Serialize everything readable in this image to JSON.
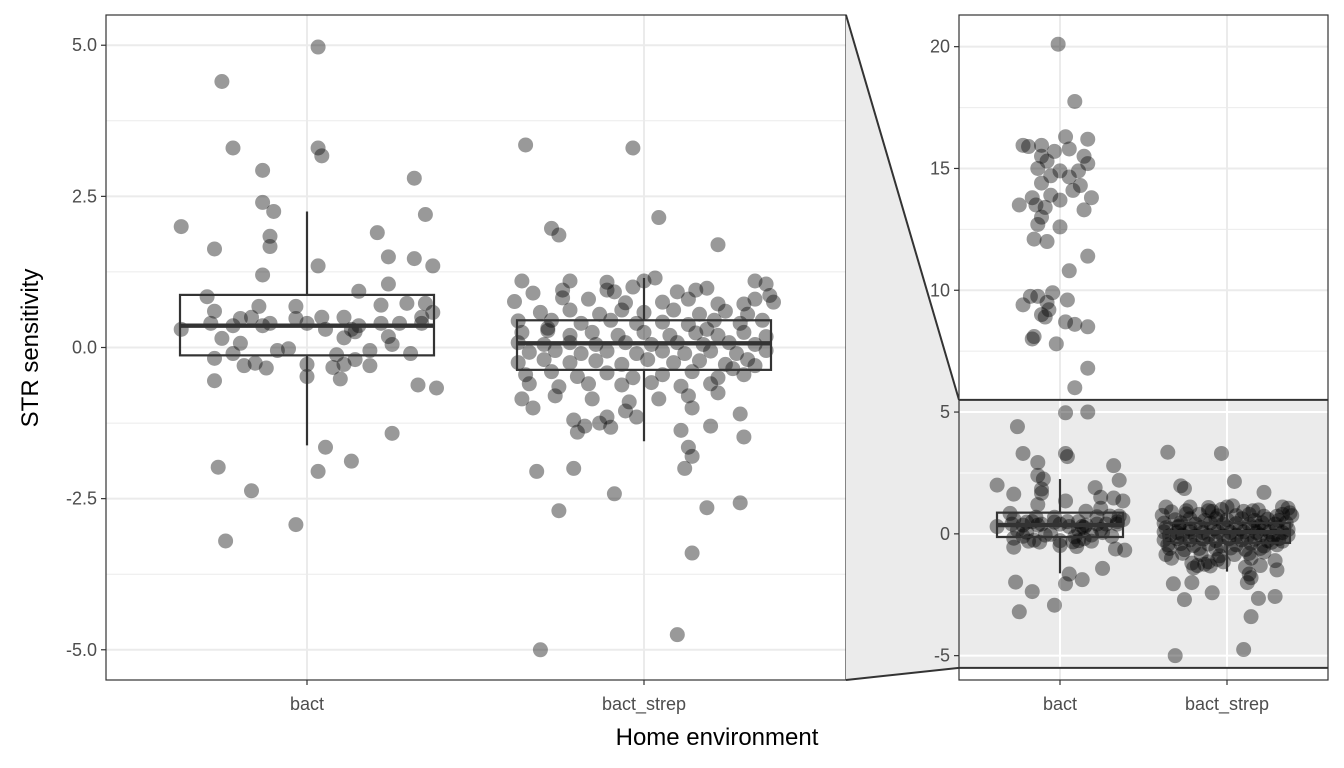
{
  "chart_data": {
    "type": "scatter",
    "subtype": "jittered points with boxplots and zoom inset",
    "xlabel": "Home environment",
    "ylabel": "STR sensitivity",
    "categories": [
      "bact",
      "bact_strep"
    ],
    "grid": true,
    "legend": "none",
    "point_color": "#000000",
    "point_opacity": 0.4,
    "main_panel": {
      "ylim": [
        -5.5,
        5.5
      ],
      "yticks": [
        -5.0,
        -2.5,
        0.0,
        2.5,
        5.0
      ],
      "ytick_labels": [
        "-5.0",
        "-2.5",
        "0.0",
        "2.5",
        "5.0"
      ],
      "xticks": [
        "bact",
        "bact_strep"
      ]
    },
    "zoom_panel": {
      "ylim": [
        -6,
        21.3
      ],
      "yticks": [
        -5,
        0,
        5,
        10,
        15,
        20
      ],
      "ytick_labels": [
        "-5",
        "0",
        "5",
        "10",
        "15",
        "20"
      ],
      "xticks": [
        "bact",
        "bact_strep"
      ],
      "highlight_range": [
        -5.5,
        5.5
      ],
      "highlight_color": "#ebebeb"
    },
    "boxes": [
      {
        "category": "bact",
        "q1": -0.13,
        "median": 0.36,
        "q3": 0.87,
        "whisker_low": -1.62,
        "whisker_high": 2.25
      },
      {
        "category": "bact_strep",
        "q1": -0.37,
        "median": 0.07,
        "q3": 0.45,
        "whisker_low": -1.55,
        "whisker_high": 1.15
      }
    ],
    "series": [
      {
        "category": "bact",
        "points": [
          [
            0.03,
            4.97
          ],
          [
            -0.23,
            4.4
          ],
          [
            -0.2,
            3.3
          ],
          [
            0.03,
            3.3
          ],
          [
            0.04,
            3.17
          ],
          [
            -0.12,
            2.93
          ],
          [
            0.29,
            2.8
          ],
          [
            -0.34,
            2.0
          ],
          [
            -0.12,
            2.4
          ],
          [
            -0.09,
            2.25
          ],
          [
            0.32,
            2.2
          ],
          [
            -0.25,
            1.63
          ],
          [
            -0.1,
            1.84
          ],
          [
            -0.1,
            1.67
          ],
          [
            0.19,
            1.9
          ],
          [
            0.29,
            1.47
          ],
          [
            0.22,
            1.5
          ],
          [
            0.03,
            1.35
          ],
          [
            0.34,
            1.35
          ],
          [
            -0.12,
            1.2
          ],
          [
            0.22,
            1.05
          ],
          [
            0.14,
            0.93
          ],
          [
            -0.27,
            0.84
          ],
          [
            0.27,
            0.73
          ],
          [
            0.32,
            0.73
          ],
          [
            -0.03,
            0.68
          ],
          [
            -0.13,
            0.68
          ],
          [
            0.34,
            0.58
          ],
          [
            0.2,
            0.7
          ],
          [
            -0.25,
            0.6
          ],
          [
            -0.15,
            0.5
          ],
          [
            -0.18,
            0.48
          ],
          [
            -0.03,
            0.48
          ],
          [
            0.31,
            0.5
          ],
          [
            0.1,
            0.5
          ],
          [
            0.04,
            0.5
          ],
          [
            -0.34,
            0.3
          ],
          [
            -0.26,
            0.4
          ],
          [
            -0.2,
            0.36
          ],
          [
            -0.12,
            0.36
          ],
          [
            -0.1,
            0.4
          ],
          [
            0.0,
            0.4
          ],
          [
            0.14,
            0.36
          ],
          [
            0.2,
            0.4
          ],
          [
            0.25,
            0.4
          ],
          [
            0.31,
            0.4
          ],
          [
            0.05,
            0.3
          ],
          [
            0.12,
            0.3
          ],
          [
            0.13,
            0.26
          ],
          [
            0.22,
            0.18
          ],
          [
            0.1,
            0.16
          ],
          [
            -0.23,
            0.15
          ],
          [
            -0.18,
            0.07
          ],
          [
            -0.2,
            -0.1
          ],
          [
            0.28,
            -0.1
          ],
          [
            0.17,
            -0.05
          ],
          [
            0.23,
            0.05
          ],
          [
            -0.08,
            -0.05
          ],
          [
            -0.05,
            -0.02
          ],
          [
            0.08,
            -0.12
          ],
          [
            0.0,
            -0.28
          ],
          [
            -0.25,
            -0.18
          ],
          [
            -0.17,
            -0.3
          ],
          [
            -0.14,
            -0.26
          ],
          [
            -0.11,
            -0.34
          ],
          [
            0.1,
            -0.28
          ],
          [
            0.13,
            -0.2
          ],
          [
            0.17,
            -0.3
          ],
          [
            0.07,
            -0.33
          ],
          [
            -0.25,
            -0.55
          ],
          [
            0.0,
            -0.48
          ],
          [
            0.09,
            -0.52
          ],
          [
            0.3,
            -0.62
          ],
          [
            0.35,
            -0.67
          ],
          [
            0.23,
            -1.42
          ],
          [
            0.05,
            -1.65
          ],
          [
            0.03,
            -2.05
          ],
          [
            0.12,
            -1.88
          ],
          [
            -0.24,
            -1.98
          ],
          [
            -0.15,
            -2.37
          ],
          [
            -0.03,
            -2.93
          ],
          [
            -0.22,
            -3.2
          ]
        ]
      },
      {
        "category": "bact_strep",
        "points": [
          [
            -0.32,
            3.35
          ],
          [
            -0.03,
            3.3
          ],
          [
            0.04,
            2.15
          ],
          [
            -0.25,
            1.97
          ],
          [
            -0.23,
            1.86
          ],
          [
            0.2,
            1.7
          ],
          [
            0.14,
            0.95
          ],
          [
            -0.33,
            1.1
          ],
          [
            -0.2,
            1.1
          ],
          [
            -0.1,
            1.08
          ],
          [
            -0.03,
            1.0
          ],
          [
            0.0,
            1.1
          ],
          [
            0.03,
            1.15
          ],
          [
            0.3,
            1.1
          ],
          [
            0.33,
            1.05
          ],
          [
            -0.22,
            0.95
          ],
          [
            -0.1,
            0.95
          ],
          [
            0.09,
            0.92
          ],
          [
            0.17,
            0.98
          ],
          [
            0.34,
            0.86
          ],
          [
            0.35,
            0.75
          ],
          [
            -0.35,
            0.76
          ],
          [
            -0.3,
            0.9
          ],
          [
            -0.22,
            0.82
          ],
          [
            -0.15,
            0.8
          ],
          [
            -0.05,
            0.74
          ],
          [
            0.05,
            0.75
          ],
          [
            0.12,
            0.8
          ],
          [
            0.2,
            0.72
          ],
          [
            0.27,
            0.72
          ],
          [
            0.3,
            0.8
          ],
          [
            -0.28,
            0.58
          ],
          [
            -0.2,
            0.62
          ],
          [
            -0.12,
            0.55
          ],
          [
            -0.06,
            0.62
          ],
          [
            0.0,
            0.58
          ],
          [
            0.08,
            0.62
          ],
          [
            0.15,
            0.55
          ],
          [
            0.22,
            0.6
          ],
          [
            0.28,
            0.55
          ],
          [
            -0.34,
            0.44
          ],
          [
            -0.25,
            0.45
          ],
          [
            -0.17,
            0.4
          ],
          [
            -0.09,
            0.45
          ],
          [
            -0.02,
            0.4
          ],
          [
            0.05,
            0.42
          ],
          [
            0.12,
            0.38
          ],
          [
            0.19,
            0.45
          ],
          [
            0.26,
            0.4
          ],
          [
            0.32,
            0.45
          ],
          [
            -0.33,
            0.25
          ],
          [
            -0.26,
            0.28
          ],
          [
            -0.2,
            0.2
          ],
          [
            -0.14,
            0.25
          ],
          [
            -0.07,
            0.2
          ],
          [
            0.0,
            0.25
          ],
          [
            0.07,
            0.2
          ],
          [
            0.14,
            0.24
          ],
          [
            0.2,
            0.2
          ],
          [
            0.27,
            0.25
          ],
          [
            0.33,
            0.18
          ],
          [
            -0.34,
            0.08
          ],
          [
            -0.27,
            0.05
          ],
          [
            -0.2,
            0.08
          ],
          [
            -0.13,
            0.05
          ],
          [
            -0.05,
            0.08
          ],
          [
            0.02,
            0.05
          ],
          [
            0.09,
            0.08
          ],
          [
            0.16,
            0.05
          ],
          [
            0.23,
            0.08
          ],
          [
            0.3,
            0.05
          ],
          [
            -0.31,
            -0.08
          ],
          [
            -0.24,
            -0.05
          ],
          [
            -0.17,
            -0.1
          ],
          [
            -0.1,
            -0.06
          ],
          [
            -0.02,
            -0.1
          ],
          [
            0.05,
            -0.06
          ],
          [
            0.11,
            -0.1
          ],
          [
            0.18,
            -0.06
          ],
          [
            0.25,
            -0.1
          ],
          [
            0.33,
            -0.05
          ],
          [
            -0.34,
            -0.25
          ],
          [
            -0.27,
            -0.2
          ],
          [
            -0.2,
            -0.25
          ],
          [
            -0.13,
            -0.22
          ],
          [
            -0.06,
            -0.28
          ],
          [
            0.01,
            -0.2
          ],
          [
            0.08,
            -0.25
          ],
          [
            0.15,
            -0.22
          ],
          [
            0.22,
            -0.28
          ],
          [
            0.28,
            -0.2
          ],
          [
            -0.32,
            -0.45
          ],
          [
            -0.25,
            -0.4
          ],
          [
            -0.18,
            -0.48
          ],
          [
            -0.1,
            -0.42
          ],
          [
            -0.03,
            -0.5
          ],
          [
            0.05,
            -0.45
          ],
          [
            0.13,
            -0.4
          ],
          [
            0.2,
            -0.5
          ],
          [
            0.27,
            -0.45
          ],
          [
            -0.31,
            -0.6
          ],
          [
            -0.23,
            -0.65
          ],
          [
            -0.15,
            -0.6
          ],
          [
            -0.06,
            -0.62
          ],
          [
            0.02,
            -0.58
          ],
          [
            0.1,
            -0.64
          ],
          [
            0.18,
            -0.6
          ],
          [
            -0.33,
            -0.85
          ],
          [
            -0.24,
            -0.8
          ],
          [
            -0.14,
            -0.85
          ],
          [
            -0.04,
            -0.9
          ],
          [
            0.04,
            -0.85
          ],
          [
            0.12,
            -0.8
          ],
          [
            0.2,
            -0.75
          ],
          [
            -0.3,
            -1.0
          ],
          [
            -0.19,
            -1.2
          ],
          [
            -0.12,
            -1.25
          ],
          [
            -0.1,
            -1.15
          ],
          [
            -0.05,
            -1.05
          ],
          [
            -0.02,
            -1.15
          ],
          [
            0.13,
            -1.0
          ],
          [
            0.18,
            -1.3
          ],
          [
            0.26,
            -1.1
          ],
          [
            -0.16,
            -1.3
          ],
          [
            -0.09,
            -1.32
          ],
          [
            -0.18,
            -1.4
          ],
          [
            0.27,
            -1.48
          ],
          [
            0.1,
            -1.37
          ],
          [
            0.12,
            -1.65
          ],
          [
            0.13,
            -1.8
          ],
          [
            0.11,
            -2.0
          ],
          [
            -0.29,
            -2.05
          ],
          [
            -0.19,
            -2.0
          ],
          [
            -0.08,
            -2.42
          ],
          [
            0.17,
            -2.65
          ],
          [
            0.26,
            -2.57
          ],
          [
            -0.23,
            -2.7
          ],
          [
            0.13,
            -3.4
          ],
          [
            0.09,
            -4.75
          ],
          [
            -0.28,
            -5.0
          ],
          [
            -0.26,
            0.32
          ],
          [
            0.24,
            -0.35
          ],
          [
            0.3,
            -0.3
          ],
          [
            -0.08,
            0.92
          ],
          [
            0.17,
            0.3
          ]
        ]
      },
      {
        "category": "bact",
        "note": "",
        "points": [
          [
            -0.01,
            20.1
          ],
          [
            0.08,
            17.75
          ],
          [
            0.03,
            16.3
          ],
          [
            0.15,
            16.2
          ],
          [
            -0.1,
            15.95
          ],
          [
            -0.17,
            15.9
          ],
          [
            -0.2,
            15.95
          ],
          [
            -0.03,
            15.7
          ],
          [
            0.05,
            15.8
          ],
          [
            -0.1,
            15.5
          ],
          [
            0.13,
            15.5
          ],
          [
            -0.07,
            15.3
          ],
          [
            0.15,
            15.2
          ],
          [
            -0.12,
            15.0
          ],
          [
            0.0,
            14.9
          ],
          [
            0.1,
            14.9
          ],
          [
            -0.05,
            14.7
          ],
          [
            0.05,
            14.65
          ],
          [
            -0.1,
            14.4
          ],
          [
            0.11,
            14.3
          ],
          [
            0.07,
            14.1
          ],
          [
            -0.15,
            13.8
          ],
          [
            -0.05,
            13.9
          ],
          [
            0.17,
            13.8
          ],
          [
            0.0,
            13.7
          ],
          [
            -0.13,
            13.5
          ],
          [
            -0.22,
            13.5
          ],
          [
            0.13,
            13.3
          ],
          [
            -0.08,
            13.4
          ],
          [
            -0.1,
            13.0
          ],
          [
            -0.12,
            12.7
          ],
          [
            0.0,
            12.6
          ],
          [
            -0.14,
            12.1
          ],
          [
            -0.07,
            12.0
          ],
          [
            0.15,
            11.4
          ],
          [
            0.05,
            10.8
          ],
          [
            -0.04,
            9.9
          ],
          [
            -0.07,
            9.5
          ],
          [
            -0.12,
            9.75
          ],
          [
            -0.16,
            9.75
          ],
          [
            0.04,
            9.6
          ],
          [
            -0.2,
            9.4
          ],
          [
            -0.06,
            9.2
          ],
          [
            -0.1,
            9.0
          ],
          [
            -0.08,
            8.9
          ],
          [
            0.03,
            8.7
          ],
          [
            0.08,
            8.6
          ],
          [
            0.15,
            8.5
          ],
          [
            -0.14,
            8.1
          ],
          [
            -0.15,
            8.0
          ],
          [
            -0.02,
            7.8
          ],
          [
            0.15,
            6.8
          ],
          [
            0.08,
            6.0
          ],
          [
            0.15,
            5.0
          ]
        ]
      }
    ]
  }
}
